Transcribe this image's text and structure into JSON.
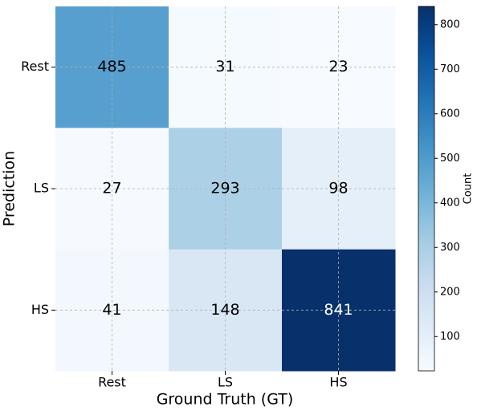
{
  "chart_data": {
    "type": "heatmap",
    "x_label": "Ground Truth (GT)",
    "y_label": "Prediction",
    "x_categories": [
      "Rest",
      "LS",
      "HS"
    ],
    "y_categories": [
      "Rest",
      "LS",
      "HS"
    ],
    "values": [
      [
        485,
        31,
        23
      ],
      [
        27,
        293,
        98
      ],
      [
        41,
        148,
        841
      ]
    ],
    "colormap": "Blues",
    "colorbar_label": "Count",
    "clim": [
      23,
      841
    ],
    "cticks": [
      100,
      200,
      300,
      400,
      500,
      600,
      700,
      800
    ],
    "grid": true
  }
}
